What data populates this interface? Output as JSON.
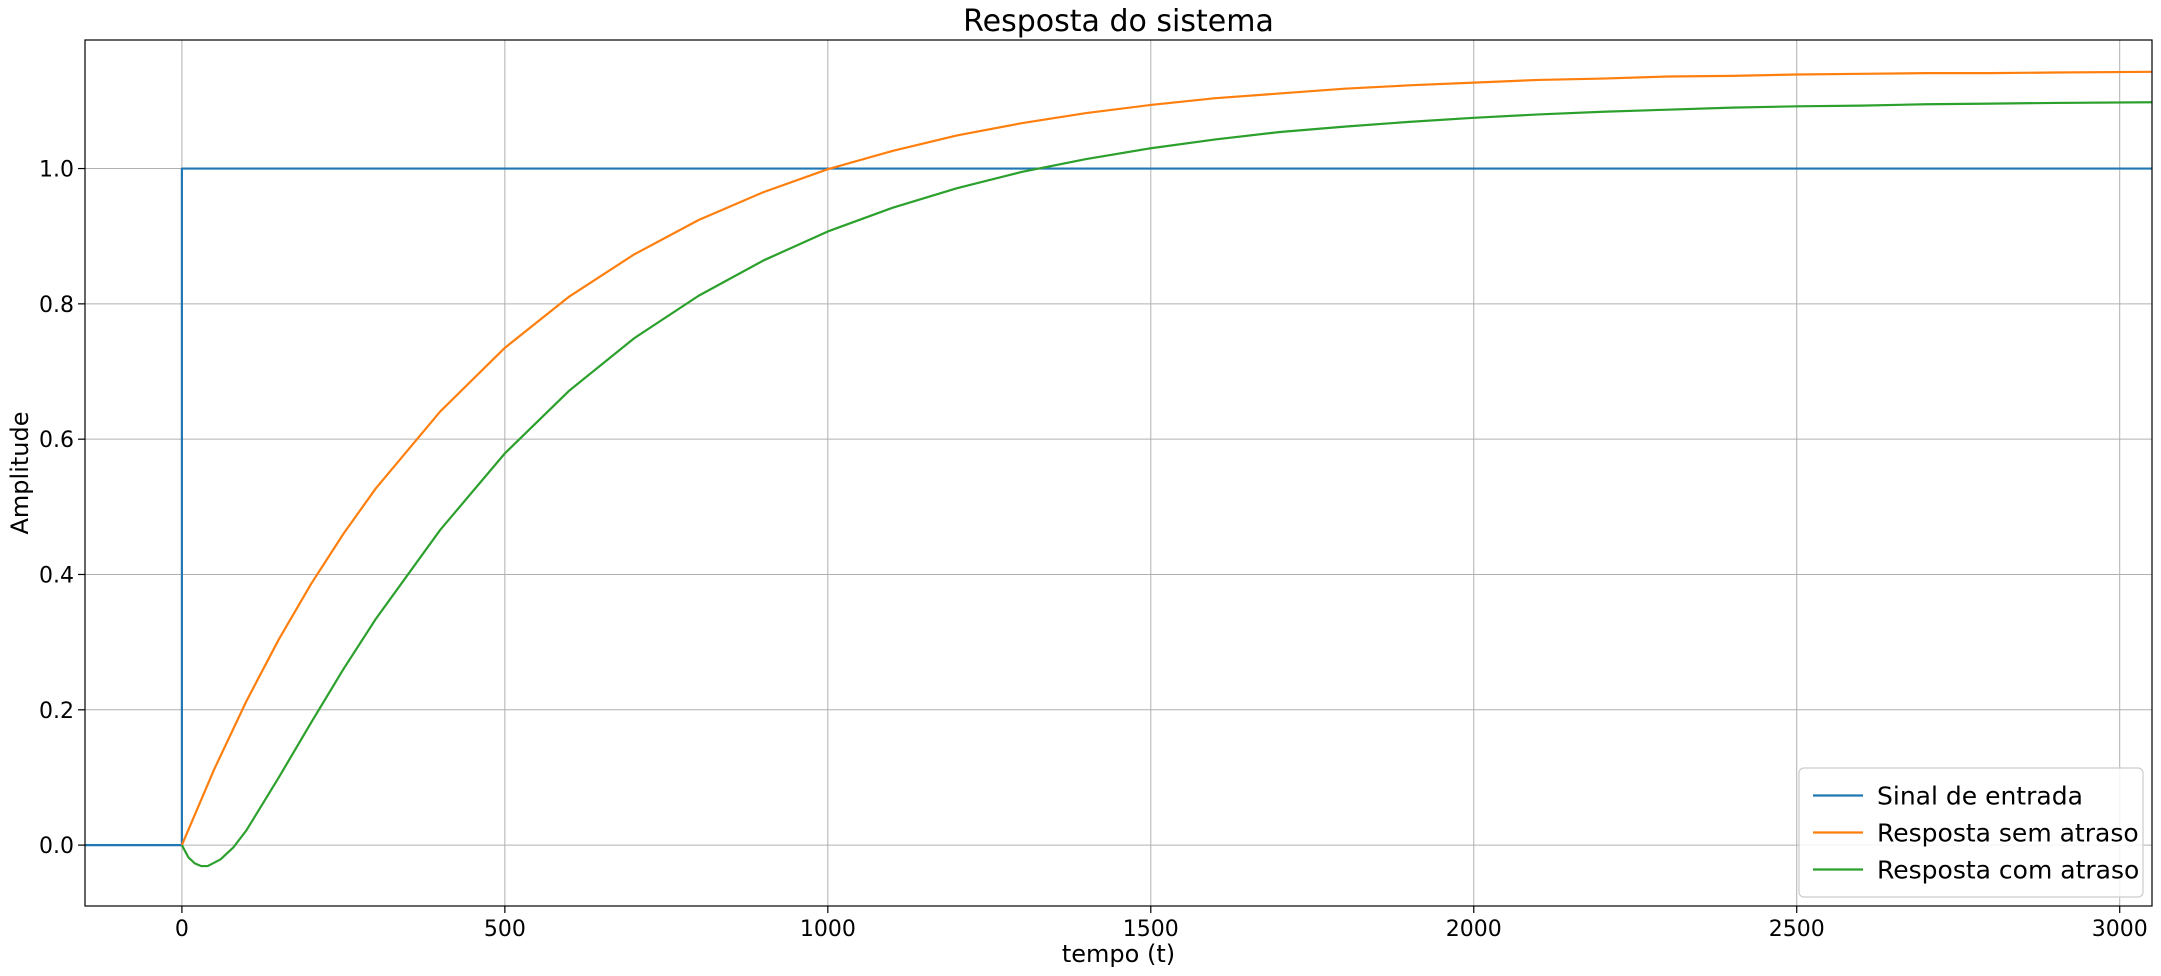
{
  "chart_data": {
    "type": "line",
    "title": "Resposta do sistema",
    "xlabel": "tempo (t)",
    "ylabel": "Amplitude",
    "xlim": [
      -150,
      3050
    ],
    "ylim": [
      -0.09,
      1.19
    ],
    "xticks": [
      0,
      500,
      1000,
      1500,
      2000,
      2500,
      3000
    ],
    "yticks": [
      0.0,
      0.2,
      0.4,
      0.6,
      0.8,
      1.0
    ],
    "xtick_labels": [
      "0",
      "500",
      "1000",
      "1500",
      "2000",
      "2500",
      "3000"
    ],
    "ytick_labels": [
      "0.0",
      "0.2",
      "0.4",
      "0.6",
      "0.8",
      "1.0"
    ],
    "grid": true,
    "legend_position": "lower-right",
    "series": [
      {
        "name": "Sinal de entrada",
        "color": "#1f77b4",
        "x": [
          -150,
          0,
          0,
          3050
        ],
        "y": [
          0.0,
          0.0,
          1.0,
          1.0
        ]
      },
      {
        "name": "Resposta sem atraso",
        "color": "#ff7f0e",
        "x": [
          0,
          50,
          100,
          150,
          200,
          250,
          300,
          400,
          500,
          600,
          700,
          800,
          900,
          1000,
          1100,
          1200,
          1300,
          1400,
          1500,
          1600,
          1700,
          1800,
          1900,
          2000,
          2100,
          2200,
          2300,
          2400,
          2500,
          2600,
          2700,
          2800,
          2900,
          3050
        ],
        "y": [
          0.0,
          0.112,
          0.213,
          0.304,
          0.386,
          0.46,
          0.527,
          0.641,
          0.735,
          0.811,
          0.873,
          0.924,
          0.965,
          0.999,
          1.026,
          1.049,
          1.067,
          1.082,
          1.094,
          1.104,
          1.111,
          1.118,
          1.123,
          1.127,
          1.131,
          1.133,
          1.136,
          1.137,
          1.139,
          1.14,
          1.141,
          1.141,
          1.142,
          1.143
        ]
      },
      {
        "name": "Resposta com atraso",
        "color": "#2ca02c",
        "x": [
          0,
          10,
          20,
          30,
          40,
          60,
          80,
          100,
          150,
          200,
          250,
          300,
          400,
          500,
          600,
          700,
          800,
          900,
          1000,
          1100,
          1200,
          1300,
          1400,
          1500,
          1600,
          1700,
          1800,
          1900,
          2000,
          2100,
          2200,
          2300,
          2400,
          2500,
          2600,
          2700,
          2800,
          2900,
          3050
        ],
        "y": [
          0.0,
          -0.018,
          -0.027,
          -0.031,
          -0.031,
          -0.021,
          -0.003,
          0.022,
          0.1,
          0.181,
          0.26,
          0.334,
          0.466,
          0.579,
          0.672,
          0.749,
          0.812,
          0.864,
          0.907,
          0.942,
          0.971,
          0.995,
          1.014,
          1.03,
          1.043,
          1.054,
          1.062,
          1.069,
          1.075,
          1.08,
          1.084,
          1.087,
          1.09,
          1.092,
          1.093,
          1.095,
          1.096,
          1.097,
          1.098
        ]
      }
    ]
  }
}
